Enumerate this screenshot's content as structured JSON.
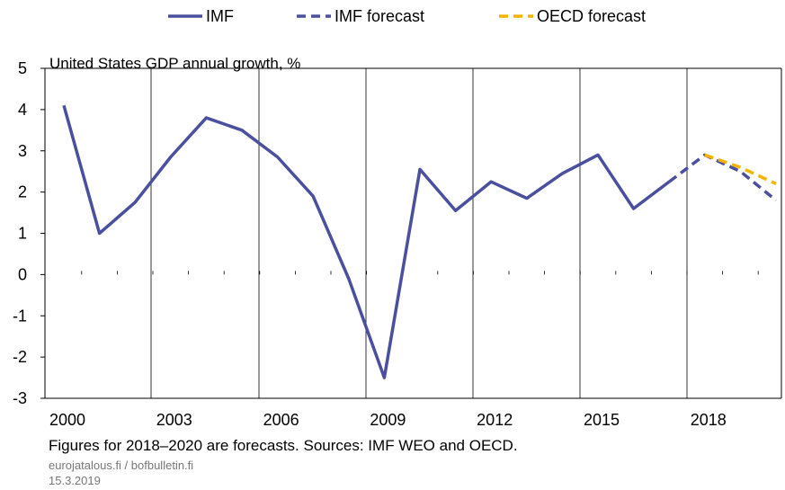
{
  "chart_data": {
    "type": "line",
    "title": "United States GDP annual growth, %",
    "xlabel": "",
    "ylabel": "",
    "xlim": [
      2000,
      2020
    ],
    "ylim": [
      -3,
      5
    ],
    "x_ticks": [
      "2000",
      "2003",
      "2006",
      "2009",
      "2012",
      "2015",
      "2018"
    ],
    "y_ticks": [
      "5",
      "4",
      "3",
      "2",
      "1",
      "0",
      "-1",
      "-2",
      "-3"
    ],
    "grid": "vertical",
    "legend_position": "top",
    "series": [
      {
        "name": "IMF",
        "color": "#4a4f9e",
        "style": "solid",
        "x": [
          2000,
          2001,
          2002,
          2003,
          2004,
          2005,
          2006,
          2007,
          2008,
          2009,
          2010,
          2011,
          2012,
          2013,
          2014,
          2015,
          2016,
          2017
        ],
        "values": [
          4.1,
          1.0,
          1.75,
          2.85,
          3.8,
          3.5,
          2.85,
          1.9,
          -0.1,
          -2.5,
          2.55,
          1.55,
          2.25,
          1.85,
          2.45,
          2.9,
          1.6,
          2.25
        ]
      },
      {
        "name": "IMF forecast",
        "color": "#4a4f9e",
        "style": "dashed",
        "x": [
          2017,
          2018,
          2019,
          2020
        ],
        "values": [
          2.25,
          2.9,
          2.5,
          1.8
        ]
      },
      {
        "name": "OECD forecast",
        "color": "#f4b400",
        "style": "dashed",
        "x": [
          2018,
          2019,
          2020
        ],
        "values": [
          2.9,
          2.6,
          2.2
        ]
      }
    ]
  },
  "footer": {
    "note": "Figures for 2018–2020 are forecasts. Sources: IMF WEO and OECD.",
    "source": "eurojatalous.fi / bofbulletin.fi",
    "date": "15.3.2019"
  }
}
